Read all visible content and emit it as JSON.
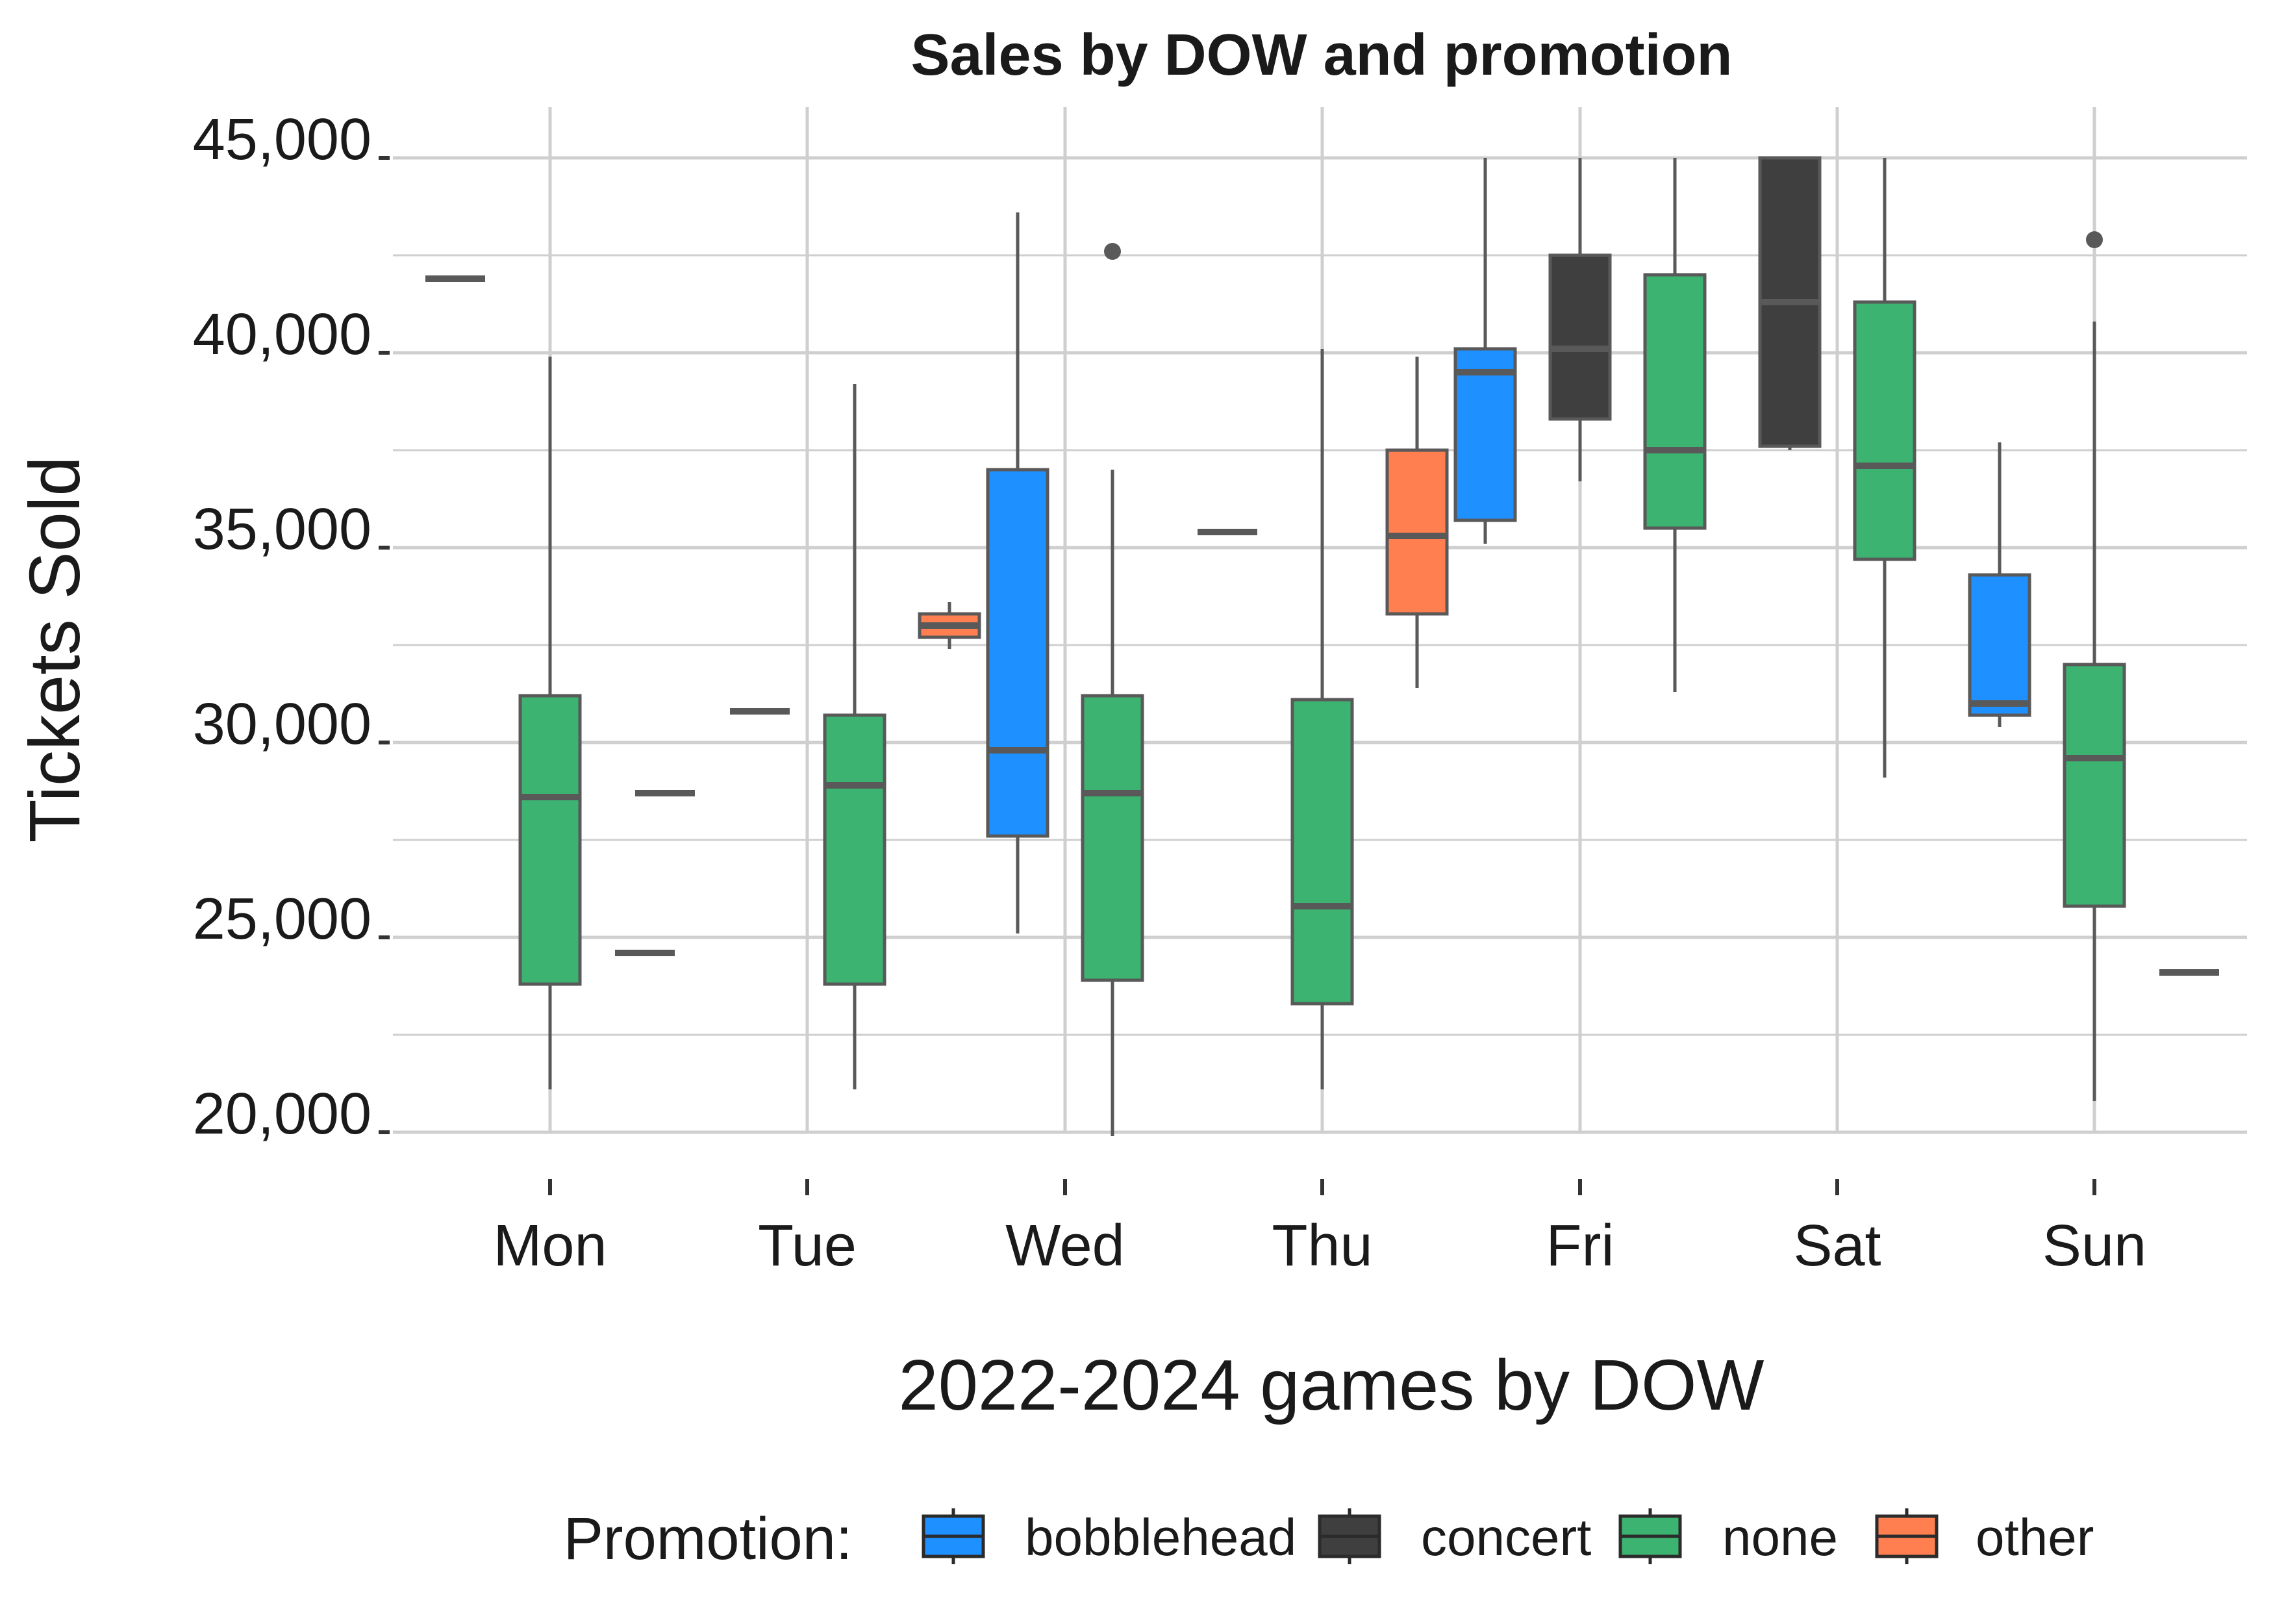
{
  "chart_data": {
    "type": "boxplot",
    "title": "Sales by DOW and promotion",
    "xlabel": "2022-2024 games by DOW",
    "ylabel": "Tickets Sold",
    "ylim": [
      18500,
      45500
    ],
    "y_ticks": [
      20000,
      25000,
      30000,
      35000,
      40000,
      45000
    ],
    "y_tick_labels": [
      "20,000",
      "25,000",
      "30,000",
      "35,000",
      "40,000",
      "45,000"
    ],
    "categories": [
      "Mon",
      "Tue",
      "Wed",
      "Thu",
      "Fri",
      "Sat",
      "Sun"
    ],
    "grid": true,
    "legend": {
      "title": "Promotion:",
      "position": "bottom",
      "entries": [
        {
          "name": "bobblehead",
          "color": "#1E90FF"
        },
        {
          "name": "concert",
          "color": "#3F3F3F"
        },
        {
          "name": "none",
          "color": "#3CB371"
        },
        {
          "name": "other",
          "color": "#FF7F50"
        }
      ]
    },
    "boxes": [
      {
        "category": "Mon",
        "promotion": "concert",
        "min": 41900,
        "q1": 41900,
        "median": 41900,
        "q3": 41900,
        "max": 41900,
        "outliers": []
      },
      {
        "category": "Mon",
        "promotion": "none",
        "min": 21100,
        "q1": 23800,
        "median": 28600,
        "q3": 31200,
        "max": 39900,
        "outliers": []
      },
      {
        "category": "Mon",
        "promotion": "other",
        "min": 24600,
        "q1": 24600,
        "median": 24600,
        "q3": 24600,
        "max": 24600,
        "outliers": []
      },
      {
        "category": "Tue",
        "promotion": "bobblehead",
        "min": 28700,
        "q1": 28700,
        "median": 28700,
        "q3": 28700,
        "max": 28700,
        "outliers": []
      },
      {
        "category": "Tue",
        "promotion": "concert",
        "min": 30800,
        "q1": 30800,
        "median": 30800,
        "q3": 30800,
        "max": 30800,
        "outliers": []
      },
      {
        "category": "Tue",
        "promotion": "none",
        "min": 21100,
        "q1": 23800,
        "median": 28900,
        "q3": 30700,
        "max": 39200,
        "outliers": []
      },
      {
        "category": "Tue",
        "promotion": "other",
        "min": 32400,
        "q1": 32700,
        "median": 33000,
        "q3": 33300,
        "max": 33600,
        "outliers": []
      },
      {
        "category": "Wed",
        "promotion": "bobblehead",
        "min": 25100,
        "q1": 27600,
        "median": 29800,
        "q3": 37000,
        "max": 43600,
        "outliers": []
      },
      {
        "category": "Wed",
        "promotion": "none",
        "min": 19900,
        "q1": 23900,
        "median": 28700,
        "q3": 31200,
        "max": 37000,
        "outliers": [
          42600
        ]
      },
      {
        "category": "Thu",
        "promotion": "concert",
        "min": 35400,
        "q1": 35400,
        "median": 35400,
        "q3": 35400,
        "max": 35400,
        "outliers": []
      },
      {
        "category": "Thu",
        "promotion": "none",
        "min": 21100,
        "q1": 23300,
        "median": 25800,
        "q3": 31100,
        "max": 40100,
        "outliers": []
      },
      {
        "category": "Thu",
        "promotion": "other",
        "min": 31400,
        "q1": 33300,
        "median": 35300,
        "q3": 37500,
        "max": 39900,
        "outliers": []
      },
      {
        "category": "Fri",
        "promotion": "bobblehead",
        "min": 35100,
        "q1": 35700,
        "median": 39500,
        "q3": 40100,
        "max": 45000,
        "outliers": []
      },
      {
        "category": "Fri",
        "promotion": "concert",
        "min": 36700,
        "q1": 38300,
        "median": 40100,
        "q3": 42500,
        "max": 45000,
        "outliers": []
      },
      {
        "category": "Fri",
        "promotion": "none",
        "min": 31300,
        "q1": 35500,
        "median": 37500,
        "q3": 42000,
        "max": 45000,
        "outliers": []
      },
      {
        "category": "Sat",
        "promotion": "concert",
        "min": 37500,
        "q1": 37600,
        "median": 41300,
        "q3": 45000,
        "max": 45000,
        "outliers": []
      },
      {
        "category": "Sat",
        "promotion": "none",
        "min": 29100,
        "q1": 34700,
        "median": 37100,
        "q3": 41300,
        "max": 45000,
        "outliers": []
      },
      {
        "category": "Sun",
        "promotion": "bobblehead",
        "min": 30400,
        "q1": 30700,
        "median": 31000,
        "q3": 34300,
        "max": 37700,
        "outliers": []
      },
      {
        "category": "Sun",
        "promotion": "none",
        "min": 20800,
        "q1": 25800,
        "median": 29600,
        "q3": 32000,
        "max": 40800,
        "outliers": [
          42900
        ]
      },
      {
        "category": "Sun",
        "promotion": "other",
        "min": 24100,
        "q1": 24100,
        "median": 24100,
        "q3": 24100,
        "max": 24100,
        "outliers": []
      }
    ]
  }
}
